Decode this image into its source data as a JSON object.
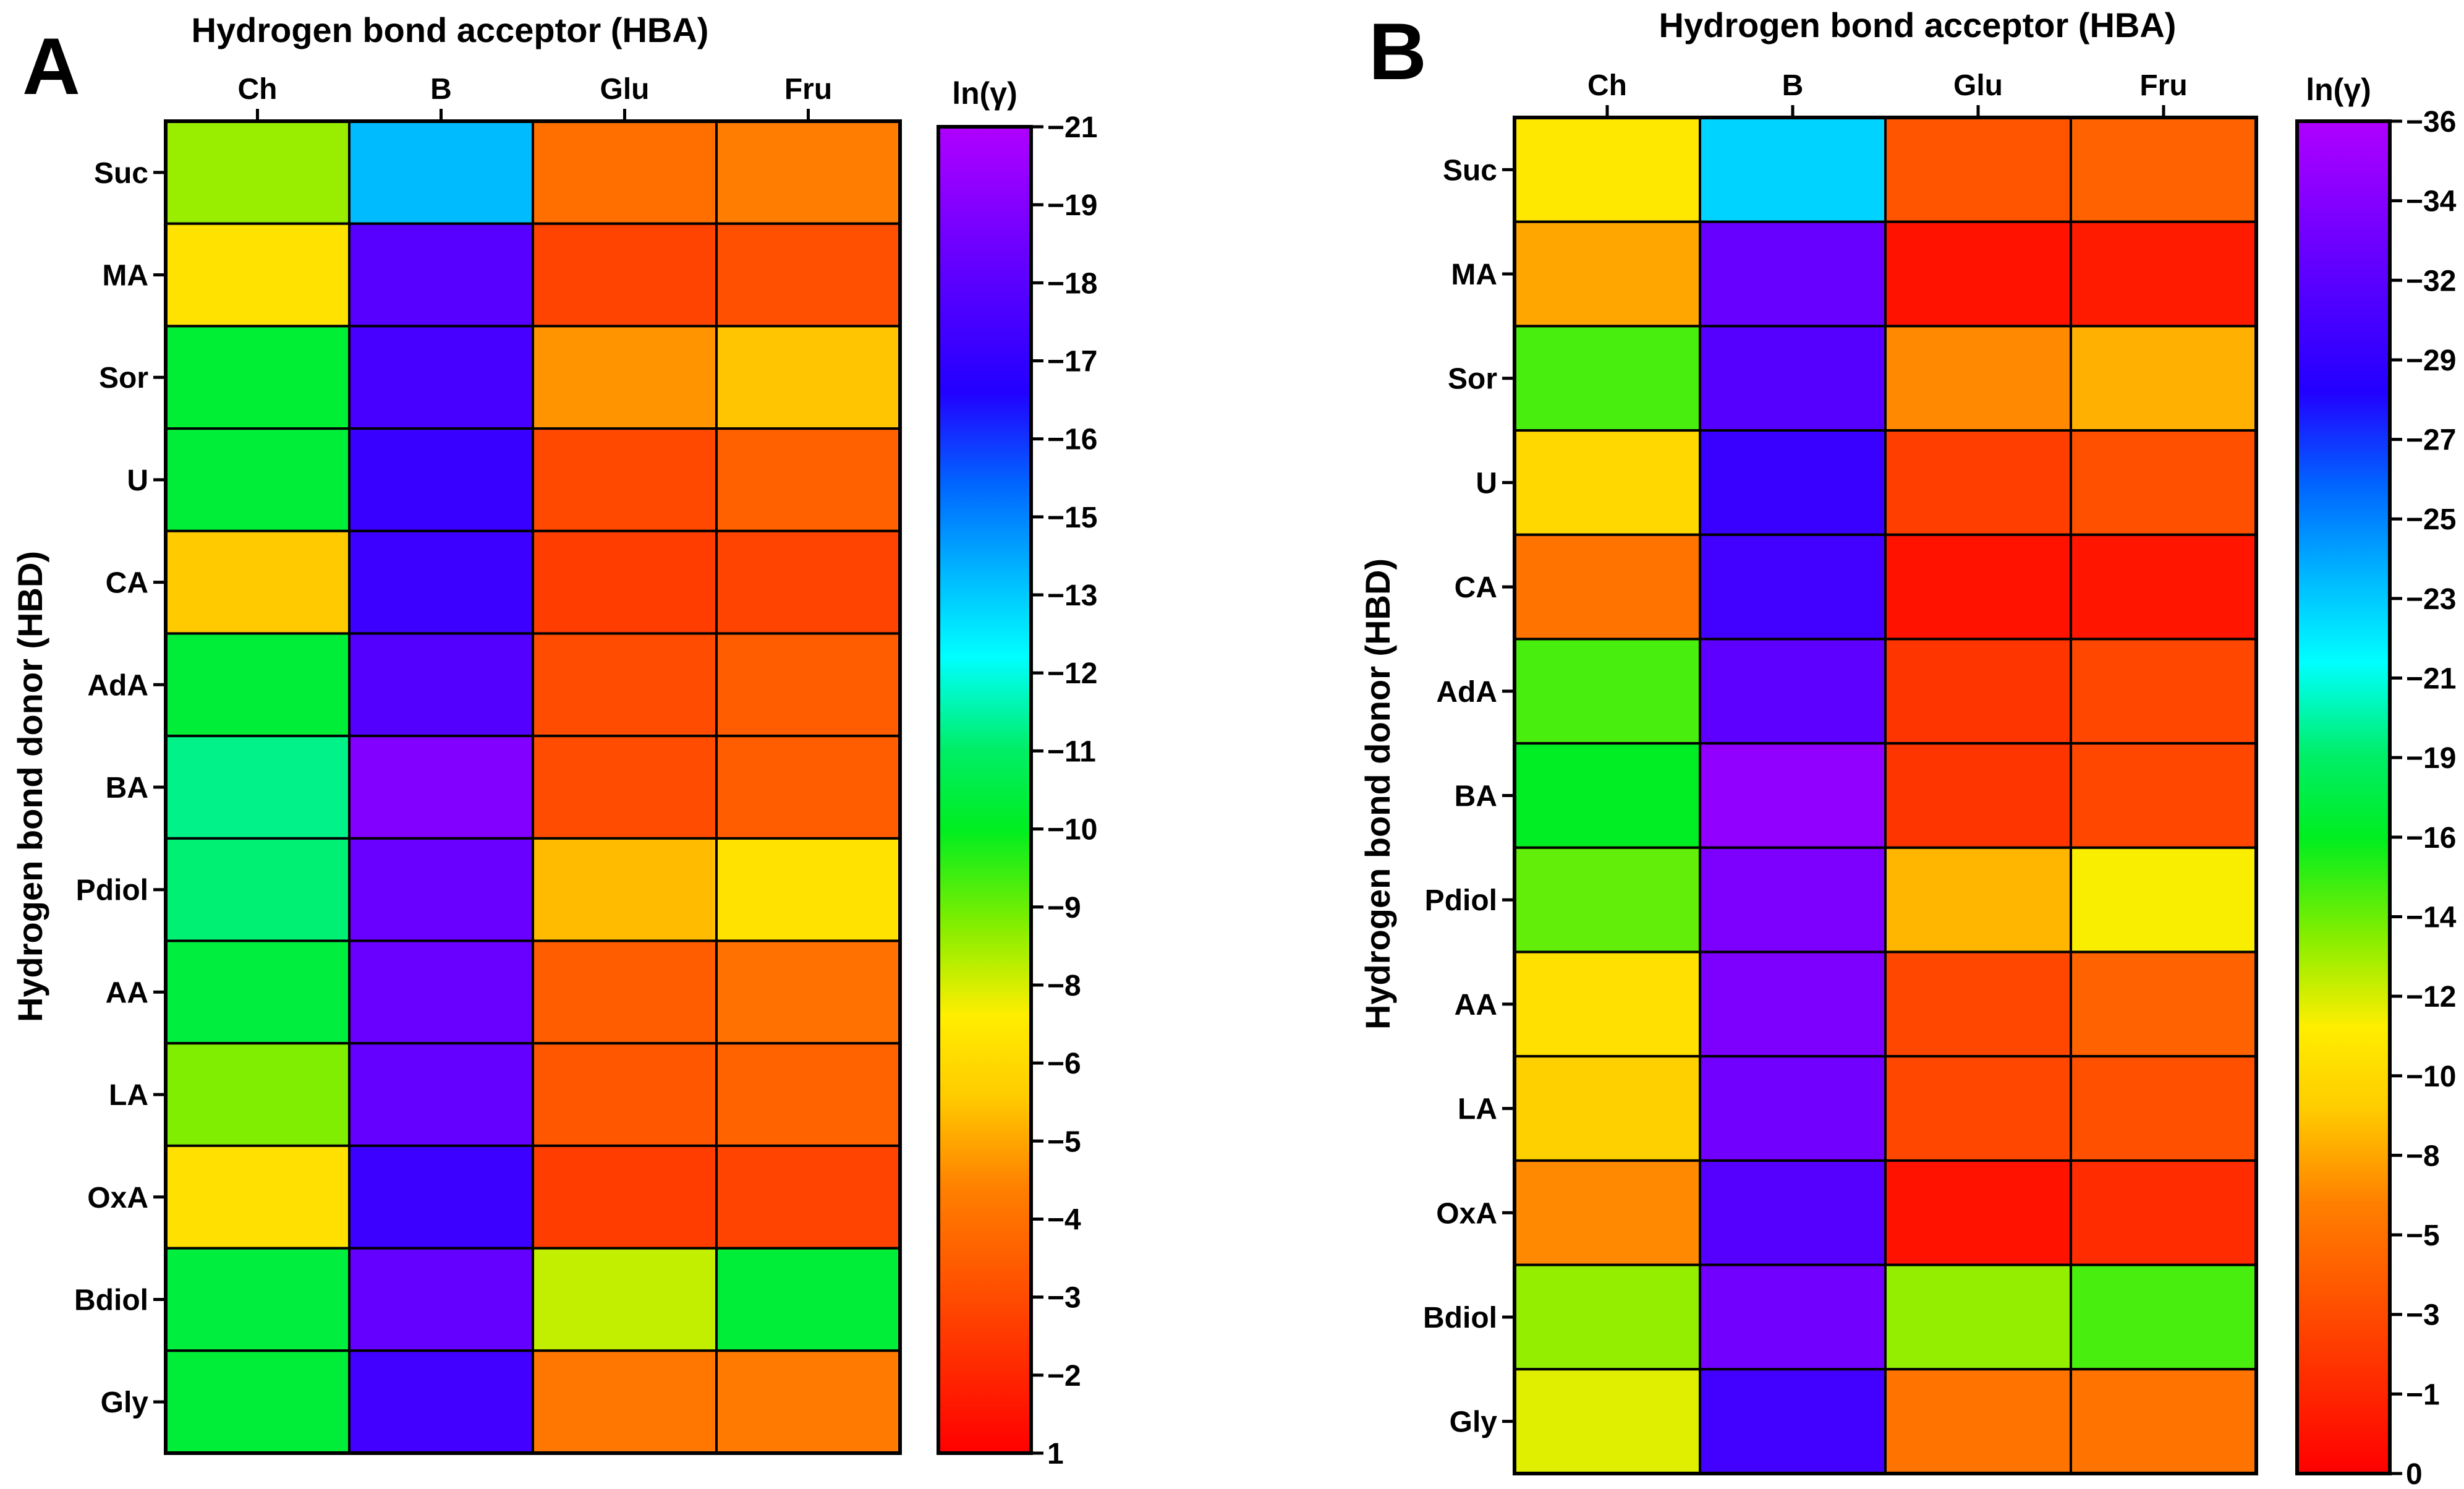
{
  "chart_data": [
    {
      "type": "heatmap",
      "panel_label": "A",
      "title": "Hydrogen bond acceptor (HBA)",
      "ylabel": "Hydrogen bond donor (HBD)",
      "x_categories": [
        "Ch",
        "B",
        "Glu",
        "Fru"
      ],
      "y_categories": [
        "Suc",
        "MA",
        "Sor",
        "U",
        "CA",
        "AdA",
        "BA",
        "Pdiol",
        "AA",
        "LA",
        "OxA",
        "Bdiol",
        "Gly"
      ],
      "values": [
        [
          -7.5,
          -13.5,
          -2.8,
          -3.3
        ],
        [
          -5.8,
          -18.3,
          -1.3,
          -1.7
        ],
        [
          -9.7,
          -17.8,
          -3.8,
          -4.8
        ],
        [
          -9.8,
          -17.3,
          -1.5,
          -2.3
        ],
        [
          -4.9,
          -17.4,
          -1.1,
          -1.3
        ],
        [
          -9.8,
          -18.2,
          -1.6,
          -2.2
        ],
        [
          -11.0,
          -19.6,
          -1.6,
          -2.2
        ],
        [
          -10.8,
          -18.9,
          -4.6,
          -5.8
        ],
        [
          -9.9,
          -18.9,
          -2.2,
          -2.9
        ],
        [
          -7.8,
          -18.7,
          -2.0,
          -2.4
        ],
        [
          -5.7,
          -17.4,
          -1.1,
          -1.3
        ],
        [
          -9.9,
          -18.7,
          -7.0,
          -9.8
        ],
        [
          -9.8,
          -17.6,
          -3.1,
          -3.2
        ]
      ],
      "colorbar": {
        "label": "ln(γ)",
        "range": [
          1,
          -21
        ],
        "tick_labels": [
          "−21",
          "−19",
          "−18",
          "−17",
          "−16",
          "−15",
          "−13",
          "−12",
          "−11",
          "−10",
          "−9",
          "−8",
          "−6",
          "−5",
          "−4",
          "−3",
          "−2",
          "1"
        ]
      }
    },
    {
      "type": "heatmap",
      "panel_label": "B",
      "title": "Hydrogen bond acceptor (HBA)",
      "ylabel": "Hydrogen bond donor (HBD)",
      "x_categories": [
        "Ch",
        "B",
        "Glu",
        "Fru"
      ],
      "y_categories": [
        "Suc",
        "MA",
        "Sor",
        "U",
        "CA",
        "AdA",
        "BA",
        "Pdiol",
        "AA",
        "LA",
        "OxA",
        "Bdiol",
        "Gly"
      ],
      "values": [
        [
          -11.5,
          -23.0,
          -4.8,
          -5.5
        ],
        [
          -8.5,
          -32.5,
          -1.0,
          -1.5
        ],
        [
          -15.5,
          -31.5,
          -7.5,
          -8.8
        ],
        [
          -10.5,
          -30.0,
          -3.5,
          -4.5
        ],
        [
          -6.5,
          -30.5,
          -1.0,
          -1.2
        ],
        [
          -15.5,
          -32.0,
          -3.0,
          -4.0
        ],
        [
          -17.0,
          -34.5,
          -3.0,
          -4.0
        ],
        [
          -15.0,
          -33.5,
          -9.0,
          -12.0
        ],
        [
          -11.0,
          -33.5,
          -4.0,
          -5.5
        ],
        [
          -10.0,
          -33.0,
          -4.0,
          -4.5
        ],
        [
          -7.5,
          -31.5,
          -1.0,
          -2.5
        ],
        [
          -14.0,
          -33.0,
          -14.0,
          -15.5
        ],
        [
          -12.5,
          -30.5,
          -6.5,
          -6.5
        ]
      ],
      "colorbar": {
        "label": "ln(γ)",
        "range": [
          0,
          -36
        ],
        "tick_labels": [
          "−36",
          "−34",
          "−32",
          "−29",
          "−27",
          "−25",
          "−23",
          "−21",
          "−19",
          "−16",
          "−14",
          "−12",
          "−10",
          "−8",
          "−5",
          "−3",
          "−1",
          "0"
        ]
      }
    }
  ]
}
